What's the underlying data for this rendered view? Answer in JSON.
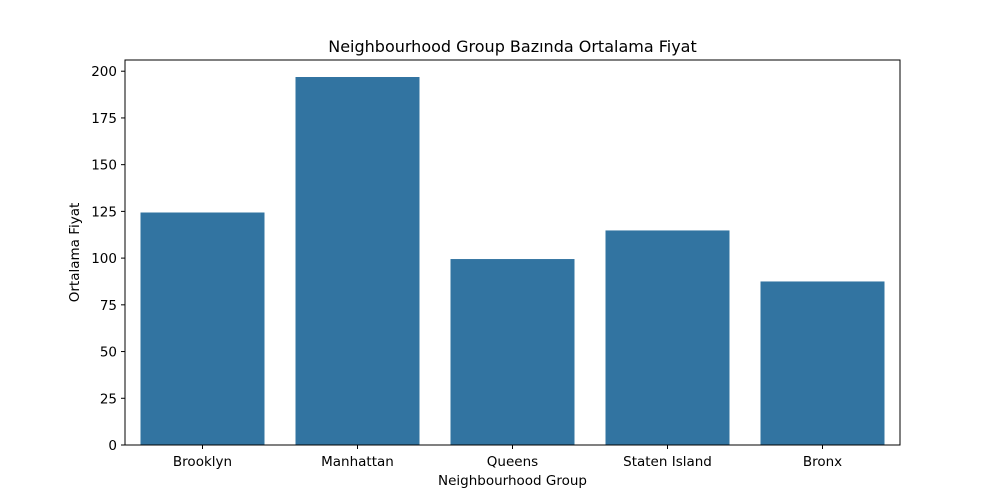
{
  "chart_data": {
    "type": "bar",
    "title": "Neighbourhood Group Bazında Ortalama Fiyat",
    "xlabel": "Neighbourhood Group",
    "ylabel": "Ortalama Fiyat",
    "categories": [
      "Brooklyn",
      "Manhattan",
      "Queens",
      "Staten Island",
      "Bronx"
    ],
    "values": [
      124.4,
      196.9,
      99.5,
      114.8,
      87.5
    ],
    "ylim": [
      0,
      206
    ],
    "yticks": [
      0,
      25,
      50,
      75,
      100,
      125,
      150,
      175,
      200
    ],
    "grid": false,
    "bar_color": "#3274a1"
  }
}
